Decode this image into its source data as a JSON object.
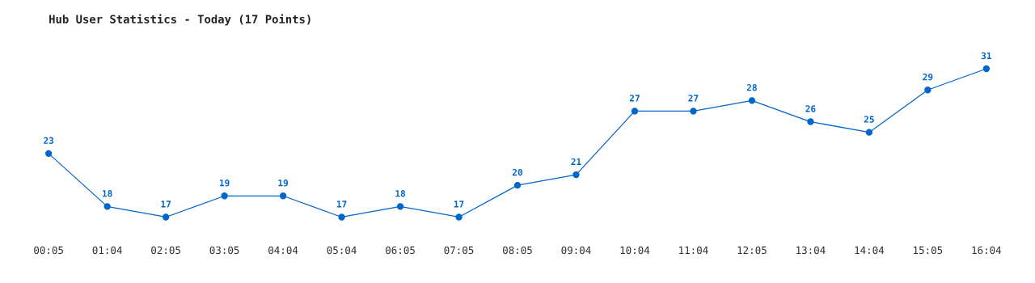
{
  "chart_data": {
    "type": "line",
    "title": "Hub User Statistics - Today (17 Points)",
    "categories": [
      "00:05",
      "01:04",
      "02:05",
      "03:05",
      "04:04",
      "05:04",
      "06:05",
      "07:05",
      "08:05",
      "09:04",
      "10:04",
      "11:04",
      "12:05",
      "13:04",
      "14:04",
      "15:05",
      "16:04"
    ],
    "series": [
      {
        "color": "#0066cc",
        "values": [
          23,
          18,
          17,
          19,
          19,
          17,
          18,
          17,
          20,
          21,
          27,
          27,
          28,
          26,
          25,
          29,
          31
        ]
      }
    ],
    "data_labels": true,
    "marker": "circle",
    "tick_labels": "x"
  }
}
